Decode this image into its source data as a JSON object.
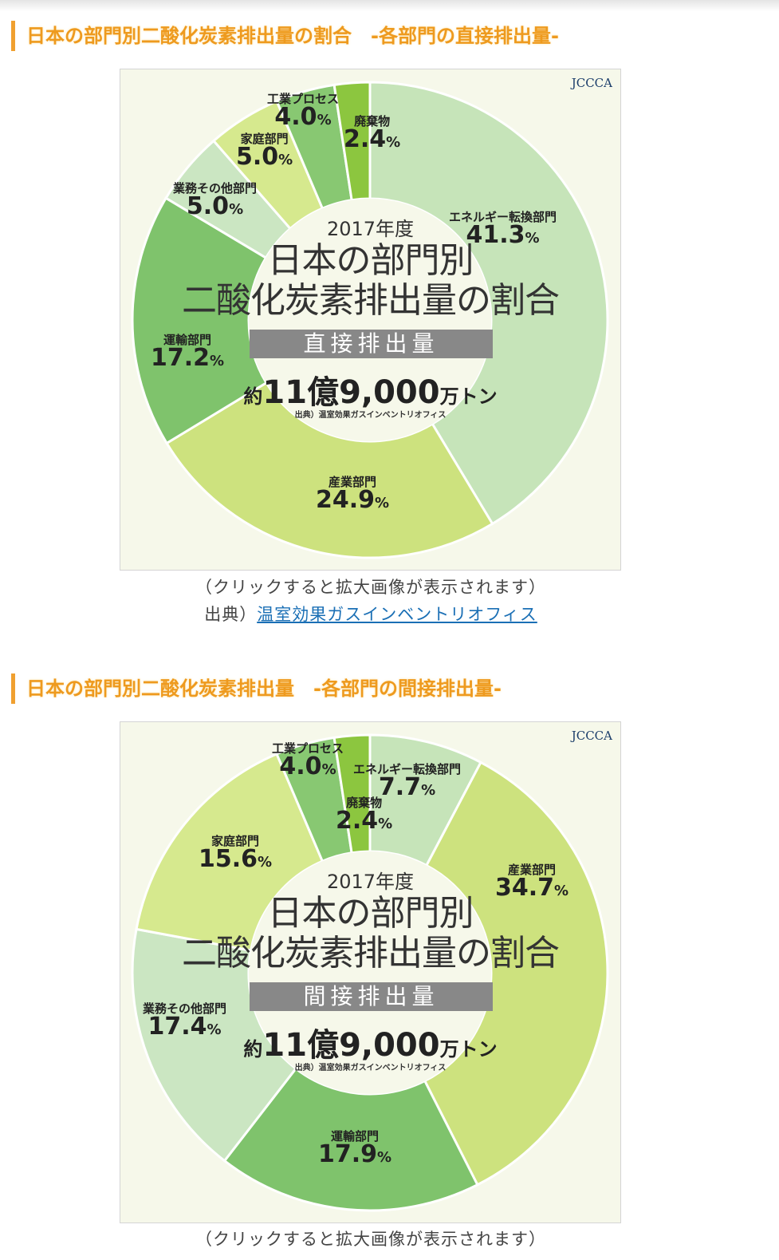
{
  "sections": [
    {
      "heading": "日本の部門別二酸化炭素排出量の割合　-各部門の直接排出量-",
      "caption": "（クリックすると拡大画像が表示されます）",
      "source_prefix": "出典）",
      "source_link": "温室効果ガスインベントリオフィス"
    },
    {
      "heading": "日本の部門別二酸化炭素排出量　-各部門の間接排出量-",
      "caption": "（クリックすると拡大画像が表示されます）"
    }
  ],
  "chart_data": [
    {
      "type": "pie",
      "donut": true,
      "logo": "JCCCA",
      "year": "2017年度",
      "title1": "日本の部門別",
      "title2": "二酸化炭素排出量の割合",
      "band": "直接排出量",
      "total_prefix": "約",
      "total_main": "11億9,000",
      "total_unit": "万トン",
      "source": "出典）温室効果ガスインベントリオフィス",
      "categories": [
        "エネルギー転換部門",
        "産業部門",
        "運輸部門",
        "業務その他部門",
        "家庭部門",
        "工業プロセス",
        "廃棄物"
      ],
      "values": [
        41.3,
        24.9,
        17.2,
        5.0,
        5.0,
        4.0,
        2.4
      ],
      "colors": [
        "#c6e4b9",
        "#cde27e",
        "#7fc36c",
        "#cbe6c2",
        "#d6e98e",
        "#88c872",
        "#8cc63f"
      ]
    },
    {
      "type": "pie",
      "donut": true,
      "logo": "JCCCA",
      "year": "2017年度",
      "title1": "日本の部門別",
      "title2": "二酸化炭素排出量の割合",
      "band": "間接排出量",
      "total_prefix": "約",
      "total_main": "11億9,000",
      "total_unit": "万トン",
      "source": "出典）温室効果ガスインベントリオフィス",
      "categories": [
        "エネルギー転換部門",
        "産業部門",
        "運輸部門",
        "業務その他部門",
        "家庭部門",
        "工業プロセス",
        "廃棄物"
      ],
      "values": [
        7.7,
        34.7,
        17.9,
        17.4,
        15.6,
        4.0,
        2.4
      ],
      "colors": [
        "#c6e4b9",
        "#cde27e",
        "#7fc36c",
        "#cbe6c2",
        "#d6e98e",
        "#88c872",
        "#8cc63f"
      ]
    }
  ]
}
